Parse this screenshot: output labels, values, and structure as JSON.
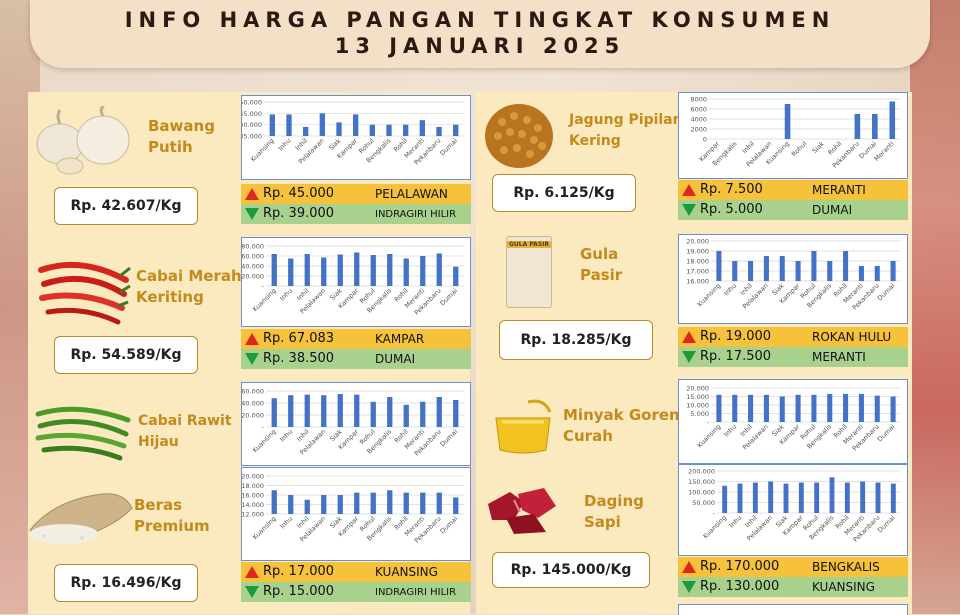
{
  "header": {
    "line1": "INFO HARGA PANGAN TINGKAT KONSUMEN",
    "line2": "13 JANUARI 2025"
  },
  "regions": [
    "Kuansing",
    "Inhu",
    "Inhil",
    "Pelalawan",
    "Siak",
    "Kampar",
    "Rohul",
    "Bengkalis",
    "Rohil",
    "Meranti",
    "Pekanbaru",
    "Dumai"
  ],
  "commodities": [
    {
      "id": "bawang-putih",
      "name1": "Bawang",
      "name2": "Putih",
      "price": "Rp. 42.607/Kg",
      "max_price": "Rp. 45.000",
      "max_region": "PELALAWAN",
      "min_price": "Rp. 39.000",
      "min_region": "INDRAGIRI HILIR",
      "icon": "garlic-icon"
    },
    {
      "id": "cabai-merah-keriting",
      "name1": "Cabai Merah",
      "name2": "Keriting",
      "price": "Rp. 54.589/Kg",
      "max_price": "Rp. 67.083",
      "max_region": "KAMPAR",
      "min_price": "Rp. 38.500",
      "min_region": "DUMAI",
      "icon": "red-chili-icon"
    },
    {
      "id": "cabai-rawit-hijau",
      "name1": "Cabai Rawit",
      "name2": "Hijau",
      "icon": "green-chili-icon"
    },
    {
      "id": "beras-premium",
      "name1": "Beras",
      "name2": "Premium",
      "price": "Rp. 16.496/Kg",
      "max_price": "Rp. 17.000",
      "max_region": "KUANSING",
      "min_price": "Rp. 15.000",
      "min_region": "INDRAGIRI HILIR",
      "icon": "rice-sack-icon"
    },
    {
      "id": "jagung-pipilan-kering",
      "name1": "Jagung Pipilan",
      "name2": "Kering",
      "price": "Rp. 6.125/Kg",
      "max_price": "Rp. 7.500",
      "max_region": "MERANTI",
      "min_price": "Rp. 5.000",
      "min_region": "DUMAI",
      "icon": "corn-kernels-icon"
    },
    {
      "id": "gula-pasir",
      "name1": "Gula",
      "name2": "Pasir",
      "price": "Rp. 18.285/Kg",
      "pack_label": "GULA PASIR",
      "max_price": "Rp. 19.000",
      "max_region": "ROKAN HULU",
      "min_price": "Rp. 17.500",
      "min_region": "MERANTI",
      "icon": "sugar-bag-icon"
    },
    {
      "id": "minyak-goreng-curah",
      "name1": "Minyak Goreng",
      "name2": "Curah",
      "icon": "cooking-oil-icon"
    },
    {
      "id": "daging-sapi",
      "name1": "Daging",
      "name2": "Sapi",
      "price": "Rp. 145.000/Kg",
      "max_price": "Rp. 170.000",
      "max_region": "BENGKALIS",
      "min_price": "Rp. 130.000",
      "min_region": "KUANSING",
      "icon": "beef-icon"
    }
  ],
  "chart_data": [
    {
      "type": "bar",
      "commodity": "Bawang Putih",
      "categories": [
        "Kuansing",
        "Inhu",
        "Inhil",
        "Pelalawan",
        "Siak",
        "Kampar",
        "Rohul",
        "Bengkalis",
        "Rohil",
        "Meranti",
        "Pekanbaru",
        "Dumai"
      ],
      "values": [
        44500,
        44500,
        39000,
        45000,
        41000,
        44500,
        40000,
        40000,
        40000,
        42000,
        39000,
        40000
      ],
      "yticks": [
        "50.000",
        "45.000",
        "40.000",
        "35.000"
      ],
      "ylim": [
        35000,
        50000
      ],
      "color": "#4472c4"
    },
    {
      "type": "bar",
      "commodity": "Cabai Merah Keriting",
      "categories": [
        "Kuansing",
        "Inhu",
        "Inhil",
        "Pelalawan",
        "Siak",
        "Kampar",
        "Rohul",
        "Bengkalis",
        "Rohil",
        "Meranti",
        "Pekanbaru",
        "Dumai"
      ],
      "values": [
        64000,
        55000,
        64000,
        57000,
        63000,
        67083,
        62000,
        64000,
        55000,
        60000,
        65000,
        38500
      ],
      "yticks": [
        "80.000",
        "60.000",
        "40.000",
        "20.000",
        "-"
      ],
      "ylim": [
        0,
        80000
      ],
      "color": "#4472c4"
    },
    {
      "type": "bar",
      "commodity": "Cabai Rawit Hijau",
      "categories": [
        "Kuansing",
        "Inhu",
        "Inhil",
        "Pelalawan",
        "Siak",
        "Kampar",
        "Rohul",
        "Bengkalis",
        "Rohil",
        "Meranti",
        "Pekanbaru",
        "Dumai"
      ],
      "values": [
        48000,
        53000,
        54000,
        53000,
        55000,
        54000,
        42000,
        50000,
        37000,
        42000,
        50000,
        45000
      ],
      "yticks": [
        "60.000",
        "40.000",
        "20.000",
        "-"
      ],
      "ylim": [
        0,
        60000
      ],
      "color": "#4472c4"
    },
    {
      "type": "bar",
      "commodity": "Beras Premium",
      "categories": [
        "Kuansing",
        "Inhu",
        "Inhil",
        "Pelalawan",
        "Siak",
        "Kampar",
        "Rohul",
        "Bengkalis",
        "Rohil",
        "Meranti",
        "Pekanbaru",
        "Dumai"
      ],
      "values": [
        17000,
        16000,
        15000,
        16000,
        16000,
        16500,
        16500,
        17000,
        16500,
        16500,
        16500,
        15500
      ],
      "yticks": [
        "20.000",
        "18.000",
        "16.000",
        "14.000",
        "12.000"
      ],
      "ylim": [
        12000,
        20000
      ],
      "color": "#4472c4"
    },
    {
      "type": "bar",
      "commodity": "Jagung Pipilan Kering",
      "categories": [
        "Kampar",
        "Bengkalis",
        "Inhil",
        "Pelalawan",
        "Kuansing",
        "Rohul",
        "Siak",
        "Rohil",
        "Pekanbaru",
        "Dumai",
        "Meranti"
      ],
      "values": [
        0,
        0,
        0,
        0,
        7000,
        0,
        0,
        0,
        5000,
        5000,
        7500
      ],
      "yticks": [
        "8000",
        "6000",
        "4000",
        "2000",
        "0"
      ],
      "ylim": [
        0,
        8000
      ],
      "color": "#4472c4"
    },
    {
      "type": "bar",
      "commodity": "Gula Pasir",
      "categories": [
        "Kuansing",
        "Inhu",
        "Inhil",
        "Pelalawan",
        "Siak",
        "Kampar",
        "Rohul",
        "Bengkalis",
        "Rohil",
        "Meranti",
        "Pekanbaru",
        "Dumai"
      ],
      "values": [
        19000,
        18000,
        18000,
        18500,
        18500,
        18000,
        19000,
        18000,
        19000,
        17500,
        17500,
        18000
      ],
      "yticks": [
        "20.000",
        "19.000",
        "18.000",
        "17.000",
        "16.000"
      ],
      "ylim": [
        16000,
        20000
      ],
      "color": "#4472c4"
    },
    {
      "type": "bar",
      "commodity": "Minyak Goreng Curah",
      "categories": [
        "Kuansing",
        "Inhu",
        "Inhil",
        "Pelalawan",
        "Siak",
        "Kampar",
        "Rohul",
        "Bengkalis",
        "Rohil",
        "Meranti",
        "Pekanbaru",
        "Dumai"
      ],
      "values": [
        16000,
        16000,
        16000,
        16000,
        15000,
        16000,
        16000,
        16500,
        16500,
        16500,
        15500,
        15000
      ],
      "yticks": [
        "20.000",
        "15.000",
        "10.000",
        "5.000",
        "-"
      ],
      "ylim": [
        0,
        20000
      ],
      "color": "#4472c4"
    },
    {
      "type": "bar",
      "commodity": "Daging Sapi",
      "categories": [
        "Kuansing",
        "Inhu",
        "Inhil",
        "Pelalawan",
        "Siak",
        "Kampar",
        "Rohul",
        "Bengkalis",
        "Rohil",
        "Meranti",
        "Pekanbaru",
        "Dumai"
      ],
      "values": [
        130000,
        140000,
        145000,
        150000,
        140000,
        145000,
        145000,
        170000,
        145000,
        150000,
        145000,
        140000
      ],
      "yticks": [
        "200.000",
        "150.000",
        "100.000",
        "50.000",
        "-"
      ],
      "ylim": [
        0,
        200000
      ],
      "color": "#4472c4"
    }
  ]
}
